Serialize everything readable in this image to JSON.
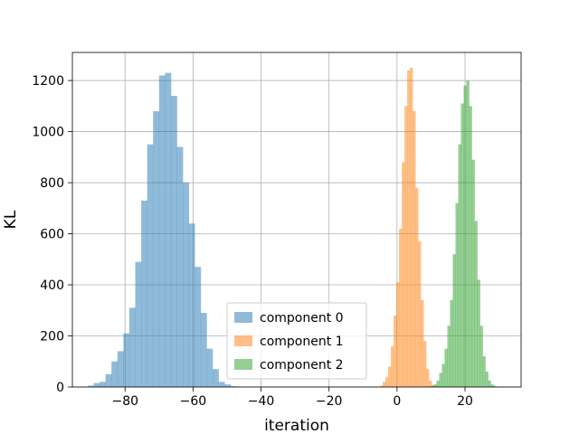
{
  "chart_data": {
    "type": "histogram",
    "xlabel": "iteration",
    "ylabel": "KL",
    "xlim": [
      -95.5,
      36.5
    ],
    "ylim": [
      0,
      1310
    ],
    "xticks": [
      -80,
      -60,
      -40,
      -20,
      0,
      20
    ],
    "yticks": [
      0,
      200,
      400,
      600,
      800,
      1000,
      1200
    ],
    "grid": true,
    "legend_position": "lower center",
    "colors": [
      "#1f77b4",
      "#ff7f0e",
      "#2ca02c"
    ],
    "opacity": 0.5,
    "series": [
      {
        "name": "component 0",
        "bin_width": 1.75,
        "bin_edges_start": -91.0,
        "values": [
          5,
          15,
          20,
          50,
          100,
          140,
          210,
          310,
          490,
          730,
          950,
          1080,
          1220,
          1230,
          1140,
          940,
          800,
          640,
          470,
          290,
          150,
          70,
          20,
          10,
          3
        ]
      },
      {
        "name": "component 1",
        "bin_width": 0.8,
        "bin_edges_start": -5.0,
        "values": [
          5,
          20,
          40,
          80,
          160,
          280,
          410,
          620,
          880,
          1100,
          1240,
          1250,
          1080,
          780,
          570,
          340,
          180,
          70,
          25,
          8
        ]
      },
      {
        "name": "component 2",
        "bin_width": 0.8,
        "bin_edges_start": 10.0,
        "values": [
          4,
          10,
          25,
          55,
          90,
          150,
          240,
          340,
          520,
          720,
          950,
          1110,
          1180,
          1200,
          1100,
          890,
          650,
          420,
          240,
          120,
          60,
          25,
          10,
          4
        ]
      }
    ]
  }
}
